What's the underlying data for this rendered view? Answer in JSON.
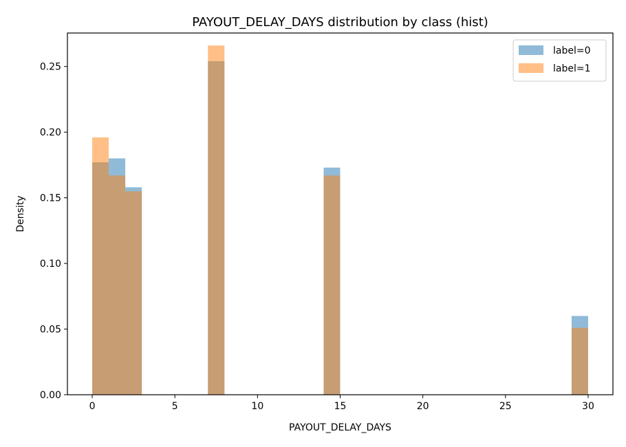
{
  "chart_data": {
    "type": "bar",
    "title": "PAYOUT_DELAY_DAYS distribution by class (hist)",
    "xlabel": "PAYOUT_DELAY_DAYS",
    "ylabel": "Density",
    "xlim": [
      -1.5,
      31.5
    ],
    "ylim": [
      0,
      0.2755
    ],
    "xticks": [
      0,
      5,
      10,
      15,
      20,
      25,
      30
    ],
    "yticks": [
      0.0,
      0.05,
      0.1,
      0.15,
      0.2,
      0.25
    ],
    "ytick_labels": [
      "0.00",
      "0.05",
      "0.10",
      "0.15",
      "0.20",
      "0.25"
    ],
    "bin_width": 1,
    "legend_position": "top-right",
    "series": [
      {
        "name": "label=0",
        "color": "#1f77b4",
        "opacity": 0.5,
        "bins": [
          {
            "x0": 0,
            "x1": 1,
            "density": 0.177
          },
          {
            "x0": 1,
            "x1": 2,
            "density": 0.18
          },
          {
            "x0": 2,
            "x1": 3,
            "density": 0.158
          },
          {
            "x0": 7,
            "x1": 8,
            "density": 0.254
          },
          {
            "x0": 14,
            "x1": 15,
            "density": 0.173
          },
          {
            "x0": 29,
            "x1": 30,
            "density": 0.06
          }
        ]
      },
      {
        "name": "label=1",
        "color": "#ff7f0e",
        "opacity": 0.5,
        "bins": [
          {
            "x0": 0,
            "x1": 1,
            "density": 0.196
          },
          {
            "x0": 1,
            "x1": 2,
            "density": 0.167
          },
          {
            "x0": 2,
            "x1": 3,
            "density": 0.155
          },
          {
            "x0": 7,
            "x1": 8,
            "density": 0.266
          },
          {
            "x0": 14,
            "x1": 15,
            "density": 0.167
          },
          {
            "x0": 29,
            "x1": 30,
            "density": 0.051
          }
        ]
      }
    ]
  }
}
